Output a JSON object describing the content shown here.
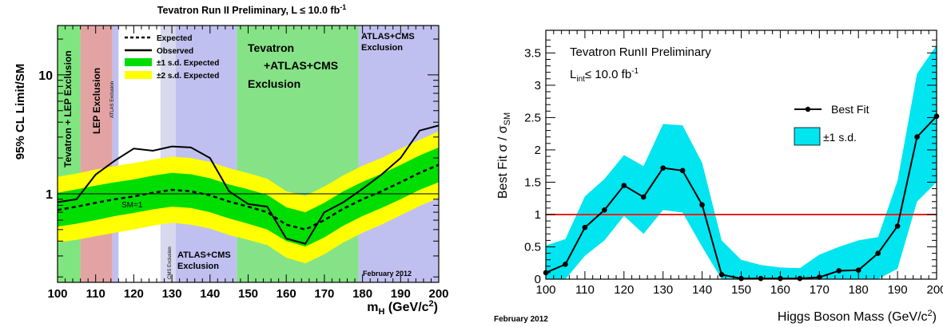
{
  "chart_data": [
    {
      "type": "line",
      "title": "Tevatron Run II Preliminary, L ≤ 10.0 fb",
      "title_sup": "-1",
      "xlabel_main": "m",
      "xlabel_sub": "H",
      "xlabel_rest": " (GeV/c",
      "xlabel_sup": "2",
      "xlabel_close": ")",
      "ylabel": "95% CL Limit/SM",
      "xlim": [
        100,
        200
      ],
      "ylim": [
        0.18,
        26
      ],
      "log_y": true,
      "x_ticks": [
        100,
        110,
        120,
        130,
        140,
        150,
        160,
        170,
        180,
        190,
        200
      ],
      "y_tick_labels": [
        {
          "value": 1,
          "label": "1"
        },
        {
          "value": 10,
          "label": "10"
        }
      ],
      "legend": {
        "position": "top-left",
        "entries": [
          {
            "label": "Expected",
            "style": "dashed"
          },
          {
            "label": "Observed",
            "style": "solid"
          },
          {
            "label": "±1 s.d. Expected",
            "color": "#00dd00"
          },
          {
            "label": "±2 s.d. Expected",
            "color": "#ffff00"
          }
        ]
      },
      "exclusion_regions": [
        {
          "label": "Tevatron + LEP Exclusion",
          "x_range": [
            100,
            106
          ],
          "color": "#7fe67f"
        },
        {
          "label": "LEP Exclusion",
          "x_range": [
            106,
            114.4
          ],
          "color": "#e3a3a3"
        },
        {
          "label": "ATLAS Exclusion",
          "x_range": [
            114.4,
            116
          ],
          "color": "#c0c0f0"
        },
        {
          "label": "CMS Exclusion",
          "x_range": [
            127,
            131
          ],
          "color": "#d8d8ee"
        },
        {
          "label": "Tevatron +ATLAS+CMS Exclusion",
          "x_range": [
            147,
            179
          ],
          "color": "#86e286"
        },
        {
          "label": "ATLAS+CMS Exclusion",
          "x_range": [
            131,
            147
          ],
          "color": "#c0c0f0"
        },
        {
          "label": "ATLAS+CMS Exclusion",
          "x_range": [
            179,
            200
          ],
          "color": "#c0c0f0"
        }
      ],
      "region_labels": {
        "tev_lep": "Tevatron + LEP Exclusion",
        "lep": "LEP Exclusion",
        "atlas_small": "ATLAS Exclusion",
        "cms_small": "CMS Exclusion",
        "tev_center_1": "Tevatron",
        "tev_center_2": "+ATLAS+CMS",
        "tev_center_3": "Exclusion",
        "ac_low_1": "ATLAS+CMS",
        "ac_low_2": "Exclusion",
        "ac_high_1": "ATLAS+CMS",
        "ac_high_2": "Exclusion",
        "sm_label": "SM=1",
        "date": "February 2012"
      },
      "x": [
        100,
        105,
        110,
        115,
        120,
        125,
        130,
        135,
        140,
        145,
        150,
        155,
        160,
        165,
        170,
        175,
        180,
        185,
        190,
        195,
        200
      ],
      "series": [
        {
          "name": "Observed",
          "values": [
            0.85,
            0.9,
            1.45,
            1.9,
            2.4,
            2.3,
            2.5,
            2.45,
            2.0,
            1.05,
            0.82,
            0.78,
            0.42,
            0.38,
            0.7,
            0.85,
            1.1,
            1.45,
            2.0,
            3.4,
            3.75
          ]
        },
        {
          "name": "Expected",
          "values": [
            0.73,
            0.78,
            0.84,
            0.9,
            0.95,
            1.02,
            1.08,
            1.05,
            0.97,
            0.86,
            0.78,
            0.7,
            0.55,
            0.5,
            0.6,
            0.75,
            0.9,
            1.05,
            1.25,
            1.5,
            1.75
          ]
        },
        {
          "name": "±1 s.d. Expected",
          "low": [
            0.53,
            0.56,
            0.6,
            0.65,
            0.69,
            0.74,
            0.78,
            0.76,
            0.7,
            0.62,
            0.56,
            0.5,
            0.4,
            0.36,
            0.43,
            0.54,
            0.65,
            0.76,
            0.9,
            1.08,
            1.25
          ],
          "high": [
            1.02,
            1.09,
            1.17,
            1.25,
            1.32,
            1.42,
            1.5,
            1.46,
            1.35,
            1.2,
            1.09,
            0.98,
            0.77,
            0.7,
            0.84,
            1.05,
            1.26,
            1.47,
            1.75,
            2.1,
            2.45
          ]
        },
        {
          "name": "±2 s.d. Expected",
          "low": [
            0.39,
            0.41,
            0.44,
            0.47,
            0.5,
            0.54,
            0.57,
            0.55,
            0.51,
            0.45,
            0.41,
            0.37,
            0.29,
            0.26,
            0.31,
            0.39,
            0.47,
            0.55,
            0.66,
            0.79,
            0.92
          ],
          "high": [
            1.39,
            1.48,
            1.6,
            1.71,
            1.81,
            1.94,
            2.05,
            2.0,
            1.85,
            1.64,
            1.49,
            1.34,
            1.05,
            0.96,
            1.15,
            1.43,
            1.72,
            2.0,
            2.4,
            2.85,
            3.35
          ]
        }
      ]
    },
    {
      "type": "line",
      "title": "Tevatron RunII Preliminary",
      "lumi_main": "L",
      "lumi_sub": "int",
      "lumi_rest": "≤ 10.0 fb",
      "lumi_sup": "-1",
      "xlabel_main": "Higgs Boson Mass (GeV/c",
      "xlabel_sup": "2",
      "xlabel_close": ")",
      "ylabel_main": "Best Fit σ / σ",
      "ylabel_sub": "SM",
      "xlim": [
        100,
        200
      ],
      "ylim": [
        0,
        3.85
      ],
      "x_ticks": [
        100,
        110,
        120,
        130,
        140,
        150,
        160,
        170,
        180,
        190,
        200
      ],
      "y_ticks": [
        0,
        0.5,
        1,
        1.5,
        2,
        2.5,
        3,
        3.5
      ],
      "y_tick_labels": [
        "0",
        "0.5",
        "1",
        "1.5",
        "2",
        "2.5",
        "3",
        "3.5"
      ],
      "reference_line": {
        "y": 1,
        "color": "#e8201e"
      },
      "legend": {
        "position": "top-right",
        "entries": [
          {
            "label": "Best Fit",
            "style": "line-marker"
          },
          {
            "label": "±1 s.d.",
            "color": "#00e5f0"
          }
        ]
      },
      "date": "February 2012",
      "x": [
        100,
        105,
        110,
        115,
        120,
        125,
        130,
        135,
        140,
        145,
        150,
        155,
        160,
        165,
        170,
        175,
        180,
        185,
        190,
        195,
        200
      ],
      "series": [
        {
          "name": "Best Fit",
          "values": [
            0.1,
            0.23,
            0.8,
            1.07,
            1.45,
            1.27,
            1.72,
            1.68,
            1.15,
            0.07,
            0.01,
            0.01,
            0.01,
            0.01,
            0.03,
            0.13,
            0.14,
            0.4,
            0.82,
            2.2,
            2.52
          ]
        },
        {
          "name": "±1 s.d.",
          "low": [
            0.0,
            0.0,
            0.36,
            0.6,
            0.98,
            0.7,
            1.07,
            1.03,
            0.5,
            0.0,
            0.0,
            0.0,
            0.0,
            0.0,
            0.0,
            0.0,
            0.0,
            0.0,
            0.16,
            1.2,
            1.5
          ],
          "high": [
            0.52,
            0.62,
            1.28,
            1.55,
            1.92,
            1.75,
            2.4,
            2.38,
            1.8,
            0.6,
            0.3,
            0.22,
            0.18,
            0.17,
            0.38,
            0.5,
            0.6,
            0.65,
            1.52,
            3.18,
            3.62
          ]
        }
      ]
    }
  ]
}
